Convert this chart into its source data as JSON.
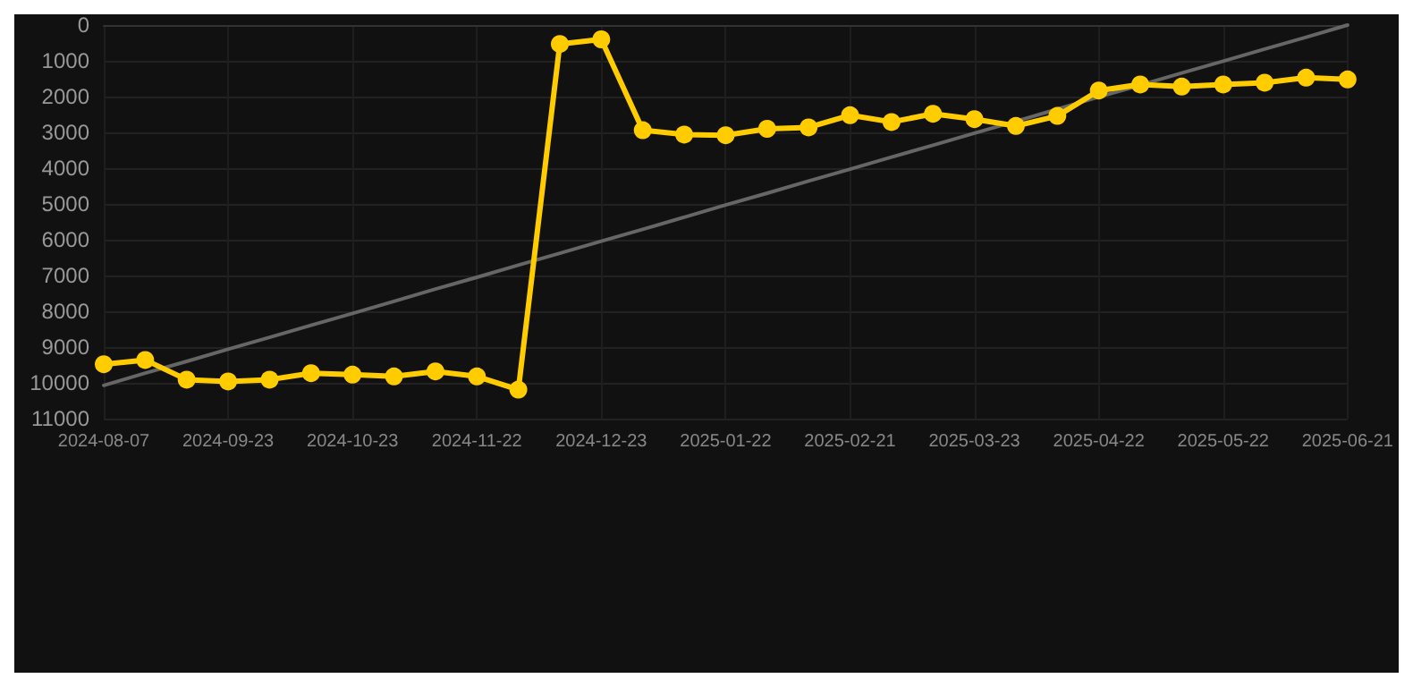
{
  "chart_data": {
    "type": "line",
    "categories": [
      "2024-08-07",
      null,
      null,
      "2024-09-23",
      null,
      null,
      "2024-10-23",
      null,
      null,
      "2024-11-22",
      null,
      null,
      "2024-12-23",
      null,
      null,
      "2025-01-22",
      null,
      null,
      "2025-02-21",
      null,
      null,
      "2025-03-23",
      null,
      null,
      "2025-04-22",
      null,
      null,
      "2025-05-22",
      null,
      null,
      "2025-06-21"
    ],
    "series": [
      {
        "color": "#ffcc00",
        "marker": "circle",
        "values": [
          9480,
          9360,
          9910,
          9960,
          9910,
          9730,
          9770,
          9820,
          9680,
          9820,
          10190,
          530,
          400,
          2940,
          3060,
          3080,
          2900,
          2860,
          2520,
          2710,
          2480,
          2630,
          2820,
          2540,
          1830,
          1660,
          1720,
          1660,
          1610,
          1470,
          1520
        ]
      },
      {
        "type": "line",
        "color": "#666666",
        "marker": "none",
        "values": [
          10070,
          9730,
          9400,
          9060,
          8730,
          8390,
          8060,
          7720,
          7380,
          7050,
          6710,
          6380,
          6040,
          5710,
          5370,
          5030,
          4700,
          4360,
          4030,
          3690,
          3360,
          3020,
          2690,
          2350,
          2010,
          1680,
          1340,
          1010,
          670,
          340,
          0
        ]
      }
    ],
    "ylim": [
      11000,
      0
    ],
    "yticks": [
      0,
      1000,
      2000,
      3000,
      4000,
      5000,
      6000,
      7000,
      8000,
      9000,
      10000,
      11000
    ],
    "grid": true
  }
}
